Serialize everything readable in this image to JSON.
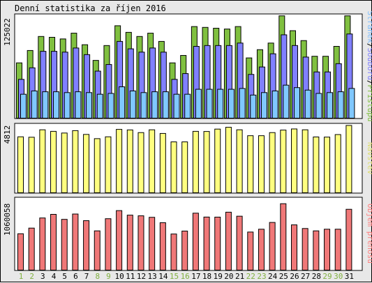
{
  "title": "Denní statistika za říjen 2016",
  "colors": {
    "background": "#e8e8e8",
    "panel": "#ffffff",
    "hits": "#80c040",
    "files": "#8080ff",
    "pages": "#80c8ff",
    "visits": "#ffff80",
    "volume": "#f07878",
    "weekend_label": "#80b040",
    "weekday_label": "#000000",
    "legend_pages": "#7fbfff",
    "legend_files": "#7f7fff",
    "legend_hits": "#7fbf3f",
    "legend_visits": "#dfdf70",
    "legend_volume": "#ff7f7f"
  },
  "chart_data": [
    {
      "type": "bar",
      "panel": "hits",
      "ymax_label": "125022",
      "ymax": 125022,
      "categories": [
        "1",
        "2",
        "3",
        "4",
        "5",
        "6",
        "7",
        "8",
        "9",
        "10",
        "11",
        "12",
        "13",
        "14",
        "15",
        "16",
        "17",
        "18",
        "19",
        "20",
        "21",
        "22",
        "23",
        "24",
        "25",
        "26",
        "27",
        "28",
        "29",
        "30",
        "31"
      ],
      "weekend": [
        1,
        2,
        8,
        9,
        15,
        16,
        22,
        23,
        29,
        30
      ],
      "legend": [
        {
          "text": "Stránek",
          "color_key": "legend_pages"
        },
        {
          "text": "/",
          "color_key": "weekday_label"
        },
        {
          "text": "Souborů",
          "color_key": "legend_files"
        },
        {
          "text": "/",
          "color_key": "weekday_label"
        },
        {
          "text": "Přístupů",
          "color_key": "legend_hits"
        }
      ],
      "series": [
        {
          "name": "Přístupů",
          "values": [
            67000,
            82000,
            99000,
            98000,
            96000,
            103000,
            89000,
            70000,
            88000,
            112000,
            104000,
            99000,
            103000,
            93000,
            67000,
            76000,
            111000,
            110000,
            109000,
            108000,
            111000,
            73000,
            83000,
            91000,
            124000,
            106000,
            94000,
            75000,
            75000,
            87000,
            124000
          ]
        },
        {
          "name": "Souborů",
          "values": [
            47000,
            61000,
            81000,
            81000,
            80000,
            85000,
            77000,
            57000,
            65000,
            93000,
            84000,
            80000,
            85000,
            80000,
            47000,
            54000,
            87000,
            88000,
            88000,
            88000,
            91000,
            53000,
            62000,
            78000,
            101000,
            88000,
            74000,
            56000,
            56000,
            66000,
            102000
          ]
        },
        {
          "name": "Stránek",
          "values": [
            29000,
            33000,
            32000,
            32000,
            31000,
            32000,
            31000,
            29000,
            30000,
            38000,
            33000,
            31000,
            32000,
            32000,
            29000,
            29000,
            35000,
            35000,
            35000,
            35000,
            36000,
            28000,
            31000,
            33000,
            40000,
            37000,
            34000,
            30000,
            31000,
            32000,
            36000
          ]
        }
      ]
    },
    {
      "type": "bar",
      "panel": "visits",
      "ymax_label": "4812",
      "ymax": 4812,
      "categories": [
        "1",
        "2",
        "3",
        "4",
        "5",
        "6",
        "7",
        "8",
        "9",
        "10",
        "11",
        "12",
        "13",
        "14",
        "15",
        "16",
        "17",
        "18",
        "19",
        "20",
        "21",
        "22",
        "23",
        "24",
        "25",
        "26",
        "27",
        "28",
        "29",
        "30",
        "31"
      ],
      "legend": [
        {
          "text": "Návštěv",
          "color_key": "legend_visits"
        }
      ],
      "series": [
        {
          "name": "Návštěv",
          "values": [
            3980,
            3950,
            4480,
            4370,
            4250,
            4420,
            4150,
            3850,
            3980,
            4510,
            4470,
            4280,
            4480,
            4220,
            3620,
            3620,
            4370,
            4360,
            4530,
            4660,
            4480,
            4060,
            4060,
            4280,
            4460,
            4540,
            4480,
            3970,
            3960,
            4140,
            4790
          ]
        }
      ]
    },
    {
      "type": "bar",
      "panel": "volume",
      "ymax_label": "1060058",
      "ymax": 1060058,
      "categories": [
        "1",
        "2",
        "3",
        "4",
        "5",
        "6",
        "7",
        "8",
        "9",
        "10",
        "11",
        "12",
        "13",
        "14",
        "15",
        "16",
        "17",
        "18",
        "19",
        "20",
        "21",
        "22",
        "23",
        "24",
        "25",
        "26",
        "27",
        "28",
        "29",
        "30",
        "31"
      ],
      "legend": [
        {
          "text": "Objem přenosu",
          "color_key": "legend_volume"
        }
      ],
      "series": [
        {
          "name": "Objem přenosu",
          "values": [
            553000,
            639000,
            793000,
            848000,
            772000,
            853000,
            752000,
            597000,
            782000,
            905000,
            836000,
            826000,
            803000,
            721000,
            549000,
            594000,
            866000,
            807000,
            806000,
            881000,
            820000,
            579000,
            622000,
            725000,
            1010000,
            688000,
            633000,
            597000,
            622000,
            622000,
            925000
          ]
        }
      ]
    }
  ]
}
